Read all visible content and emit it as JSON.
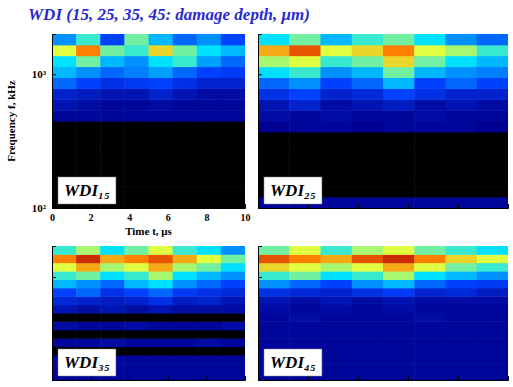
{
  "title": "WDI (15, 25, 35, 45: damage depth, μm)",
  "chart_data": [
    {
      "type": "heatmap",
      "title": "WDI₁₅",
      "xlabel": "Time t, μs",
      "ylabel": "Frequency f, kHz",
      "log": "y",
      "xlim": [
        0,
        10
      ],
      "ylim": [
        100,
        2000
      ],
      "xticks": [
        0,
        2,
        4,
        6,
        8,
        10
      ],
      "yticks": [
        {
          "value": 100,
          "label": "10²"
        },
        {
          "value": 1000,
          "label": "10³"
        }
      ],
      "zlim": [
        0,
        1
      ],
      "x_bins": [
        0,
        1.25,
        2.5,
        3.75,
        5,
        6.25,
        7.5,
        8.75,
        10
      ],
      "y_bins": [
        100,
        121,
        145,
        175,
        211,
        255,
        307,
        371,
        447,
        539,
        650,
        784,
        946,
        1141,
        1377,
        1660,
        2000
      ],
      "cells": [
        [
          0,
          0,
          0,
          0,
          0,
          0,
          0,
          0
        ],
        [
          0,
          0,
          0,
          0,
          0,
          0,
          0,
          0
        ],
        [
          0,
          0,
          0,
          0,
          0,
          0,
          0,
          0
        ],
        [
          0,
          0,
          0,
          0,
          0,
          0,
          0,
          0
        ],
        [
          0,
          0,
          0,
          0,
          0,
          0,
          0,
          0
        ],
        [
          0,
          0,
          0,
          0,
          0,
          0,
          0,
          0
        ],
        [
          0,
          0,
          0,
          0,
          0,
          0,
          0,
          0
        ],
        [
          0,
          0,
          0,
          0,
          0,
          0,
          0,
          0
        ],
        [
          0.1,
          0.1,
          0.1,
          0.1,
          0.1,
          0.1,
          0.1,
          0.1
        ],
        [
          0.15,
          0.12,
          0.1,
          0.1,
          0.12,
          0.1,
          0.1,
          0.1
        ],
        [
          0.2,
          0.18,
          0.15,
          0.15,
          0.2,
          0.15,
          0.12,
          0.12
        ],
        [
          0.35,
          0.3,
          0.25,
          0.28,
          0.3,
          0.25,
          0.2,
          0.2
        ],
        [
          0.45,
          0.4,
          0.35,
          0.38,
          0.42,
          0.35,
          0.3,
          0.28
        ],
        [
          0.5,
          0.6,
          0.45,
          0.4,
          0.5,
          0.55,
          0.42,
          0.35
        ],
        [
          0.7,
          0.85,
          0.6,
          0.55,
          0.75,
          0.6,
          0.5,
          0.45
        ],
        [
          0.4,
          0.55,
          0.3,
          0.6,
          0.45,
          0.35,
          0.4,
          0.3
        ]
      ]
    },
    {
      "type": "heatmap",
      "title": "WDI₂₅",
      "tick_labels": false,
      "log": "y",
      "xlim": [
        0,
        10
      ],
      "ylim": [
        100,
        2000
      ],
      "xticks": [
        0,
        2,
        4,
        6,
        8,
        10
      ],
      "yticks": [
        100,
        1000
      ],
      "zlim": [
        0,
        1
      ],
      "x_bins": [
        0,
        1.25,
        2.5,
        3.75,
        5,
        6.25,
        7.5,
        8.75,
        10
      ],
      "y_bins": [
        100,
        121,
        145,
        175,
        211,
        255,
        307,
        371,
        447,
        539,
        650,
        784,
        946,
        1141,
        1377,
        1660,
        2000
      ],
      "cells": [
        [
          0.1,
          0.1,
          0.1,
          0.1,
          0.1,
          0.1,
          0.1,
          0.1
        ],
        [
          0,
          0,
          0,
          0,
          0,
          0,
          0,
          0
        ],
        [
          0,
          0,
          0,
          0,
          0,
          0,
          0,
          0
        ],
        [
          0,
          0,
          0,
          0,
          0,
          0,
          0,
          0
        ],
        [
          0,
          0,
          0,
          0,
          0,
          0,
          0,
          0
        ],
        [
          0,
          0,
          0,
          0,
          0,
          0,
          0,
          0
        ],
        [
          0,
          0,
          0,
          0,
          0,
          0,
          0,
          0
        ],
        [
          0.08,
          0.1,
          0.1,
          0.08,
          0.1,
          0.1,
          0.1,
          0.08
        ],
        [
          0.12,
          0.1,
          0.12,
          0.1,
          0.1,
          0.12,
          0.1,
          0.1
        ],
        [
          0.15,
          0.2,
          0.12,
          0.15,
          0.18,
          0.12,
          0.15,
          0.12
        ],
        [
          0.25,
          0.3,
          0.2,
          0.22,
          0.3,
          0.25,
          0.2,
          0.2
        ],
        [
          0.35,
          0.4,
          0.3,
          0.35,
          0.45,
          0.3,
          0.35,
          0.3
        ],
        [
          0.5,
          0.55,
          0.4,
          0.45,
          0.6,
          0.45,
          0.4,
          0.38
        ],
        [
          0.65,
          0.7,
          0.55,
          0.6,
          0.75,
          0.6,
          0.5,
          0.45
        ],
        [
          0.8,
          0.9,
          0.7,
          0.75,
          0.85,
          0.7,
          0.65,
          0.55
        ],
        [
          0.5,
          0.6,
          0.45,
          0.55,
          0.6,
          0.5,
          0.4,
          0.35
        ]
      ]
    },
    {
      "type": "heatmap",
      "title": "WDI₃₅",
      "tick_labels": false,
      "log": "y",
      "xlim": [
        0,
        10
      ],
      "ylim": [
        100,
        2000
      ],
      "xticks": [
        0,
        2,
        4,
        6,
        8,
        10
      ],
      "yticks": [
        100,
        1000
      ],
      "zlim": [
        0,
        1
      ],
      "x_bins": [
        0,
        1.25,
        2.5,
        3.75,
        5,
        6.25,
        7.5,
        8.75,
        10
      ],
      "y_bins": [
        100,
        121,
        145,
        175,
        211,
        255,
        307,
        371,
        447,
        539,
        650,
        784,
        946,
        1141,
        1377,
        1660,
        2000
      ],
      "cells": [
        [
          0.1,
          0.1,
          0.1,
          0.1,
          0.1,
          0.1,
          0.1,
          0.1
        ],
        [
          0.1,
          0.1,
          0.1,
          0.1,
          0.1,
          0.1,
          0.1,
          0.1
        ],
        [
          0.1,
          0.1,
          0.1,
          0.1,
          0.1,
          0.1,
          0.1,
          0.1
        ],
        [
          0,
          0,
          0,
          0,
          0,
          0,
          0,
          0
        ],
        [
          0.1,
          0.1,
          0.12,
          0.1,
          0.1,
          0.1,
          0.12,
          0.1
        ],
        [
          0,
          0,
          0,
          0,
          0,
          0,
          0,
          0
        ],
        [
          0.12,
          0.1,
          0.1,
          0.12,
          0.1,
          0.1,
          0.1,
          0.12
        ],
        [
          0,
          0,
          0,
          0,
          0,
          0,
          0,
          0
        ],
        [
          0.15,
          0.12,
          0.15,
          0.12,
          0.15,
          0.12,
          0.12,
          0.12
        ],
        [
          0.22,
          0.2,
          0.18,
          0.2,
          0.25,
          0.18,
          0.2,
          0.15
        ],
        [
          0.3,
          0.35,
          0.25,
          0.3,
          0.35,
          0.28,
          0.25,
          0.22
        ],
        [
          0.45,
          0.4,
          0.35,
          0.45,
          0.5,
          0.4,
          0.35,
          0.3
        ],
        [
          0.55,
          0.6,
          0.5,
          0.55,
          0.65,
          0.5,
          0.45,
          0.4
        ],
        [
          0.7,
          0.8,
          0.65,
          0.7,
          0.8,
          0.65,
          0.6,
          0.5
        ],
        [
          0.85,
          0.95,
          0.8,
          0.85,
          0.9,
          0.8,
          0.7,
          0.6
        ],
        [
          0.55,
          0.65,
          0.5,
          0.6,
          0.7,
          0.55,
          0.5,
          0.4
        ]
      ]
    },
    {
      "type": "heatmap",
      "title": "WDI₄₅",
      "tick_labels": false,
      "log": "y",
      "xlim": [
        0,
        10
      ],
      "ylim": [
        100,
        2000
      ],
      "xticks": [
        0,
        2,
        4,
        6,
        8,
        10
      ],
      "yticks": [
        100,
        1000
      ],
      "zlim": [
        0,
        1
      ],
      "x_bins": [
        0,
        1.25,
        2.5,
        3.75,
        5,
        6.25,
        7.5,
        8.75,
        10
      ],
      "y_bins": [
        100,
        121,
        145,
        175,
        211,
        255,
        307,
        371,
        447,
        539,
        650,
        784,
        946,
        1141,
        1377,
        1660,
        2000
      ],
      "cells": [
        [
          0.1,
          0.1,
          0.1,
          0.1,
          0.1,
          0.1,
          0.1,
          0.1
        ],
        [
          0.1,
          0.1,
          0.1,
          0.1,
          0.1,
          0.1,
          0.1,
          0.1
        ],
        [
          0.1,
          0.1,
          0.1,
          0.1,
          0.1,
          0.1,
          0.1,
          0.1
        ],
        [
          0.1,
          0.1,
          0.1,
          0.1,
          0.1,
          0.1,
          0.1,
          0.1
        ],
        [
          0.1,
          0.1,
          0.1,
          0.1,
          0.1,
          0.1,
          0.1,
          0.1
        ],
        [
          0.1,
          0.1,
          0.1,
          0.1,
          0.1,
          0.1,
          0.1,
          0.1
        ],
        [
          0.1,
          0.1,
          0.1,
          0.1,
          0.1,
          0.1,
          0.1,
          0.1
        ],
        [
          0.1,
          0.12,
          0.1,
          0.1,
          0.1,
          0.12,
          0.1,
          0.1
        ],
        [
          0.12,
          0.1,
          0.12,
          0.1,
          0.12,
          0.1,
          0.1,
          0.1
        ],
        [
          0.15,
          0.12,
          0.15,
          0.12,
          0.15,
          0.12,
          0.12,
          0.12
        ],
        [
          0.25,
          0.22,
          0.2,
          0.25,
          0.28,
          0.2,
          0.22,
          0.18
        ],
        [
          0.4,
          0.35,
          0.3,
          0.4,
          0.45,
          0.35,
          0.3,
          0.28
        ],
        [
          0.55,
          0.6,
          0.5,
          0.55,
          0.65,
          0.5,
          0.45,
          0.4
        ],
        [
          0.75,
          0.7,
          0.65,
          0.7,
          0.8,
          0.7,
          0.6,
          0.55
        ],
        [
          0.9,
          0.85,
          0.8,
          0.9,
          0.95,
          0.85,
          0.75,
          0.7
        ],
        [
          0.6,
          0.7,
          0.55,
          0.65,
          0.7,
          0.6,
          0.55,
          0.5
        ]
      ]
    }
  ]
}
